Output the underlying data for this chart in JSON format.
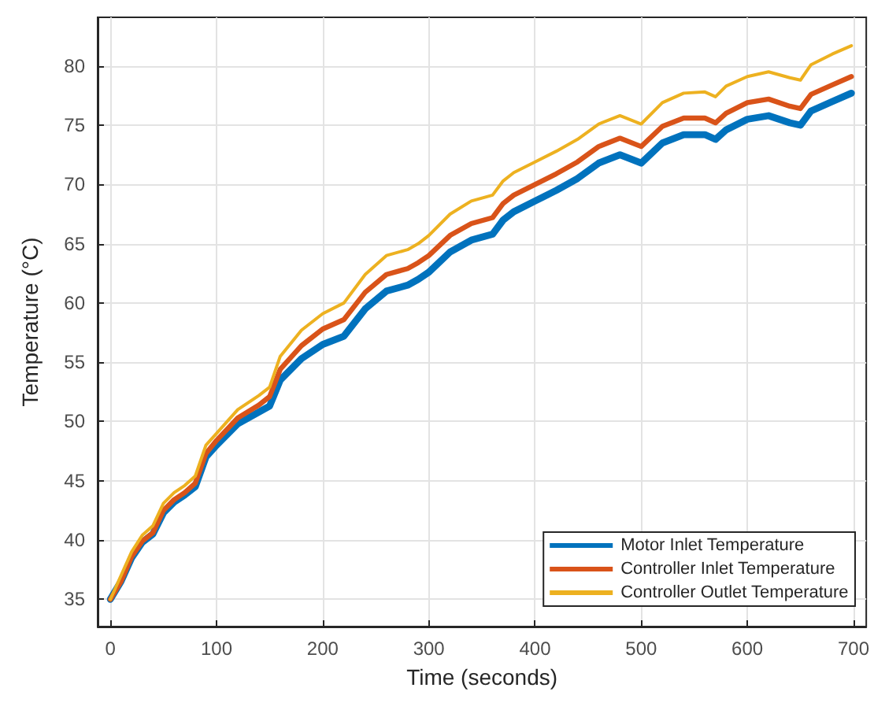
{
  "chart_data": {
    "type": "line",
    "xlabel": "Time (seconds)",
    "ylabel": "Temperature (°C)",
    "x": [
      0,
      10,
      20,
      30,
      40,
      50,
      60,
      70,
      80,
      90,
      100,
      120,
      140,
      150,
      160,
      180,
      200,
      220,
      240,
      260,
      280,
      290,
      300,
      320,
      340,
      360,
      370,
      380,
      400,
      420,
      440,
      460,
      480,
      500,
      520,
      540,
      560,
      570,
      580,
      600,
      620,
      640,
      650,
      660,
      680,
      698
    ],
    "series": [
      {
        "name": "Motor Inlet Temperature",
        "color": "#0072bd",
        "values": [
          35,
          36.5,
          38.5,
          39.8,
          40.5,
          42.3,
          43.2,
          43.8,
          44.5,
          47,
          48,
          49.8,
          50.8,
          51.3,
          53.5,
          55.3,
          56.5,
          57.2,
          59.5,
          61,
          61.5,
          62,
          62.6,
          64.3,
          65.3,
          65.8,
          67,
          67.7,
          68.6,
          69.5,
          70.5,
          71.8,
          72.5,
          71.8,
          73.5,
          74.2,
          74.2,
          73.8,
          74.6,
          75.5,
          75.8,
          75.2,
          75.0,
          76.2,
          77.0,
          77.7
        ]
      },
      {
        "name": "Controller Inlet Temperature",
        "color": "#d95319",
        "values": [
          35,
          36.5,
          38.6,
          39.9,
          40.6,
          42.5,
          43.4,
          44.0,
          44.8,
          47.3,
          48.4,
          50.3,
          51.4,
          52.1,
          54.4,
          56.4,
          57.8,
          58.6,
          60.9,
          62.4,
          62.9,
          63.4,
          64.0,
          65.7,
          66.7,
          67.2,
          68.4,
          69.1,
          70.0,
          70.9,
          71.9,
          73.2,
          73.9,
          73.2,
          74.9,
          75.6,
          75.6,
          75.2,
          76.0,
          76.9,
          77.2,
          76.6,
          76.4,
          77.6,
          78.4,
          79.1
        ]
      },
      {
        "name": "Controller Outlet Temperature",
        "color": "#edb120",
        "values": [
          35,
          37.0,
          39.0,
          40.4,
          41.2,
          43.1,
          44.0,
          44.6,
          45.4,
          48.0,
          49.0,
          51.0,
          52.2,
          52.9,
          55.5,
          57.7,
          59.1,
          60.0,
          62.4,
          64.0,
          64.5,
          65.0,
          65.7,
          67.5,
          68.6,
          69.1,
          70.3,
          71.0,
          71.9,
          72.8,
          73.8,
          75.1,
          75.8,
          75.1,
          76.9,
          77.7,
          77.8,
          77.4,
          78.3,
          79.1,
          79.5,
          79.0,
          78.8,
          80.1,
          81.0,
          81.7
        ]
      }
    ],
    "xlim": [
      -12,
      712
    ],
    "xticks": [
      0,
      100,
      200,
      300,
      400,
      500,
      600,
      700
    ],
    "ylim": [
      32.7,
      84.1
    ],
    "yticks": [
      35,
      40,
      45,
      50,
      55,
      60,
      65,
      70,
      75,
      80
    ],
    "grid": true,
    "legend": "bottom right",
    "marker": "none",
    "line_style": "solid"
  }
}
